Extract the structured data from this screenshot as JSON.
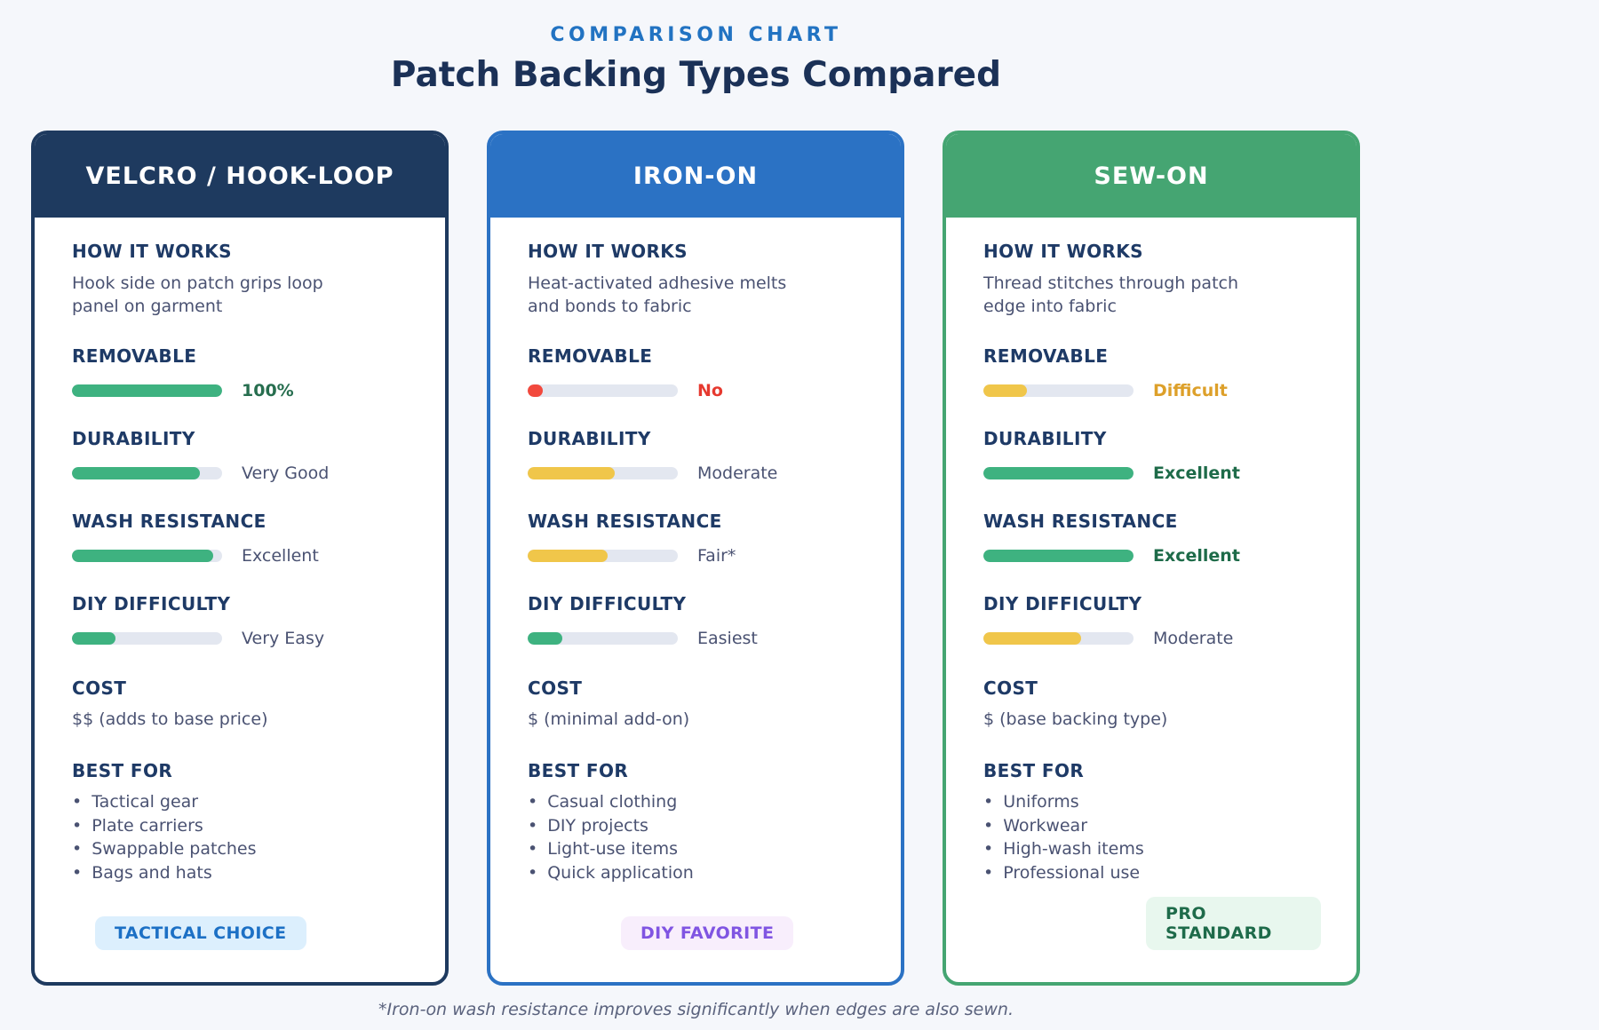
{
  "page": {
    "eyebrow": "COMPARISON CHART",
    "title": "Patch Backing Types Compared",
    "footnote": "*Iron-on wash resistance improves significantly when edges are also sewn."
  },
  "chart_data": {
    "type": "table",
    "subtitle": "COMPARISON CHART",
    "title": "Patch Backing Types Compared",
    "columns": [
      "VELCRO / HOOK-LOOP",
      "IRON-ON",
      "SEW-ON"
    ],
    "rows": [
      {
        "metric": "How it works",
        "values": [
          "Hook side on patch grips loop panel on garment",
          "Heat-activated adhesive melts and bonds to fabric",
          "Thread stitches through patch edge into fabric"
        ]
      },
      {
        "metric": "Removable",
        "values": [
          "100%",
          "No",
          "Difficult"
        ],
        "bar_percents": [
          100,
          10,
          29
        ],
        "bar_colors": [
          "#3eb280",
          "#f2493d",
          "#f0c64a"
        ]
      },
      {
        "metric": "Durability",
        "values": [
          "Very Good",
          "Moderate",
          "Excellent"
        ],
        "bar_percents": [
          85,
          58,
          100
        ],
        "bar_colors": [
          "#3eb280",
          "#f0c64a",
          "#3eb280"
        ]
      },
      {
        "metric": "Wash resistance",
        "values": [
          "Excellent",
          "Fair*",
          "Excellent"
        ],
        "bar_percents": [
          94,
          53,
          100
        ],
        "bar_colors": [
          "#3eb280",
          "#f0c64a",
          "#3eb280"
        ]
      },
      {
        "metric": "DIY difficulty",
        "values": [
          "Very Easy",
          "Easiest",
          "Moderate"
        ],
        "bar_percents": [
          29,
          23,
          65
        ],
        "bar_colors": [
          "#3eb280",
          "#3eb280",
          "#f0c64a"
        ]
      },
      {
        "metric": "Cost",
        "values": [
          "$$ (adds to base price)",
          "$ (minimal add-on)",
          "$ (base backing type)"
        ]
      },
      {
        "metric": "Best for",
        "values": [
          [
            "Tactical gear",
            "Plate carriers",
            "Swappable patches",
            "Bags and hats"
          ],
          [
            "Casual clothing",
            "DIY projects",
            "Light-use items",
            "Quick application"
          ],
          [
            "Uniforms",
            "Workwear",
            "High-wash items",
            "Professional use"
          ]
        ]
      },
      {
        "metric": "Badge",
        "values": [
          "TACTICAL CHOICE",
          "DIY FAVORITE",
          "PRO STANDARD"
        ]
      }
    ],
    "footnote": "*Iron-on wash resistance improves significantly when edges are also sewn."
  },
  "labels": {
    "how": "HOW IT WORKS",
    "cost": "COST",
    "best": "BEST FOR"
  },
  "cards": [
    {
      "title": "VELCRO / HOOK-LOOP",
      "theme": {
        "header": "#1e3a5f",
        "border": "#1e3a5f",
        "badge_bg": "#dceffd",
        "badge_text": "#1c70c5"
      },
      "how_text": "Hook side on patch grips loop panel on garment",
      "metrics": {
        "removable": {
          "label": "REMOVABLE",
          "percent": 100,
          "color": "#3eb280",
          "value": "100%",
          "value_color": "#276e4f",
          "value_bold": true
        },
        "durability": {
          "label": "DURABILITY",
          "percent": 85,
          "color": "#3eb280",
          "value": "Very Good",
          "value_color": "#4a5272",
          "value_bold": false
        },
        "wash": {
          "label": "WASH RESISTANCE",
          "percent": 94,
          "color": "#3eb280",
          "value": "Excellent",
          "value_color": "#4a5272",
          "value_bold": false
        },
        "diy": {
          "label": "DIY DIFFICULTY",
          "percent": 29,
          "color": "#3eb280",
          "value": "Very Easy",
          "value_color": "#4a5272",
          "value_bold": false
        }
      },
      "cost_value": "$$ (adds to base price)",
      "best_for": [
        "Tactical gear",
        "Plate carriers",
        "Swappable patches",
        "Bags and hats"
      ],
      "badge": "TACTICAL CHOICE"
    },
    {
      "title": "IRON-ON",
      "theme": {
        "header": "#2b72c4",
        "border": "#2b72c4",
        "badge_bg": "#f8eefc",
        "badge_text": "#8055e2"
      },
      "how_text": "Heat-activated adhesive melts and bonds to fabric",
      "metrics": {
        "removable": {
          "label": "REMOVABLE",
          "percent": 10,
          "color": "#f2493d",
          "value": "No",
          "value_color": "#e6392f",
          "value_bold": true
        },
        "durability": {
          "label": "DURABILITY",
          "percent": 58,
          "color": "#f0c64a",
          "value": "Moderate",
          "value_color": "#4a5272",
          "value_bold": false
        },
        "wash": {
          "label": "WASH RESISTANCE",
          "percent": 53,
          "color": "#f0c64a",
          "value": "Fair*",
          "value_color": "#4a5272",
          "value_bold": false
        },
        "diy": {
          "label": "DIY DIFFICULTY",
          "percent": 23,
          "color": "#3eb280",
          "value": "Easiest",
          "value_color": "#4a5272",
          "value_bold": false
        }
      },
      "cost_value": "$ (minimal add-on)",
      "best_for": [
        "Casual clothing",
        "DIY projects",
        "Light-use items",
        "Quick application"
      ],
      "badge": "DIY FAVORITE"
    },
    {
      "title": "SEW-ON",
      "theme": {
        "header": "#45a572",
        "border": "#45a572",
        "badge_bg": "#e8f7ee",
        "badge_text": "#1e6b4a"
      },
      "how_text": "Thread stitches through patch edge into fabric",
      "metrics": {
        "removable": {
          "label": "REMOVABLE",
          "percent": 29,
          "color": "#f0c64a",
          "value": "Difficult",
          "value_color": "#dda02a",
          "value_bold": true
        },
        "durability": {
          "label": "DURABILITY",
          "percent": 100,
          "color": "#3eb280",
          "value": "Excellent",
          "value_color": "#1e6b49",
          "value_bold": true
        },
        "wash": {
          "label": "WASH RESISTANCE",
          "percent": 100,
          "color": "#3eb280",
          "value": "Excellent",
          "value_color": "#1e6b49",
          "value_bold": true
        },
        "diy": {
          "label": "DIY DIFFICULTY",
          "percent": 65,
          "color": "#f0c64a",
          "value": "Moderate",
          "value_color": "#4a5272",
          "value_bold": false
        }
      },
      "cost_value": "$ (base backing type)",
      "best_for": [
        "Uniforms",
        "Workwear",
        "High-wash items",
        "Professional use"
      ],
      "badge": "PRO STANDARD"
    }
  ]
}
